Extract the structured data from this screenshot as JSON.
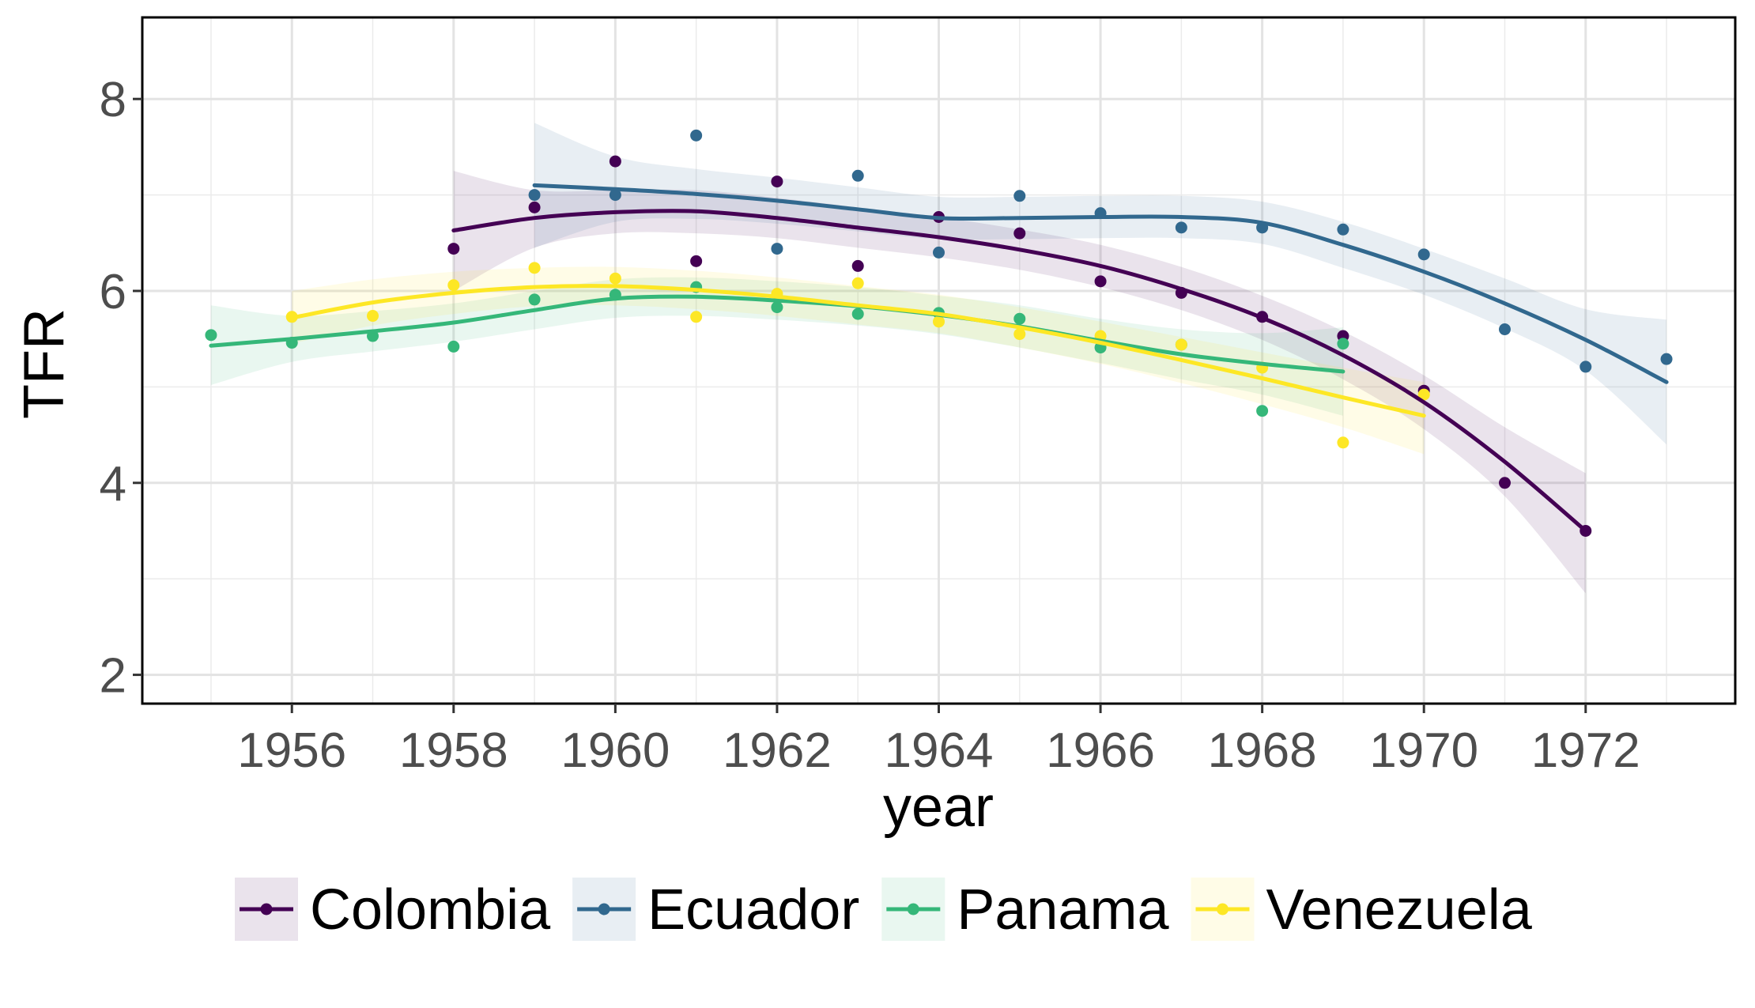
{
  "chart_data": {
    "type": "line",
    "xlabel": "year",
    "ylabel": "TFR",
    "xlim": [
      1954.15,
      1973.85
    ],
    "ylim": [
      1.7,
      8.85
    ],
    "x_ticks": [
      1956,
      1958,
      1960,
      1962,
      1964,
      1966,
      1968,
      1970,
      1972
    ],
    "y_ticks": [
      2,
      4,
      6,
      8
    ],
    "grid": true,
    "legend_position": "bottom",
    "series": [
      {
        "name": "Colombia",
        "color": "#440154",
        "points": [
          [
            1958,
            6.44
          ],
          [
            1959,
            6.87
          ],
          [
            1960,
            7.35
          ],
          [
            1961,
            6.31
          ],
          [
            1962,
            7.14
          ],
          [
            1963,
            6.26
          ],
          [
            1964,
            6.77
          ],
          [
            1965,
            6.6
          ],
          [
            1966,
            6.1
          ],
          [
            1967,
            5.98
          ],
          [
            1968,
            5.73
          ],
          [
            1969,
            5.53
          ],
          [
            1970,
            4.96
          ],
          [
            1971,
            4.0
          ],
          [
            1972,
            3.5
          ]
        ],
        "smooth": [
          [
            1958,
            6.63
          ],
          [
            1959,
            6.76
          ],
          [
            1960,
            6.82
          ],
          [
            1961,
            6.83
          ],
          [
            1962,
            6.76
          ],
          [
            1963,
            6.66
          ],
          [
            1964,
            6.56
          ],
          [
            1965,
            6.43
          ],
          [
            1966,
            6.26
          ],
          [
            1967,
            6.02
          ],
          [
            1968,
            5.72
          ],
          [
            1969,
            5.33
          ],
          [
            1970,
            4.84
          ],
          [
            1971,
            4.22
          ],
          [
            1972,
            3.5
          ]
        ],
        "band": [
          [
            1958,
            7.25,
            6.0
          ],
          [
            1959,
            7.05,
            6.45
          ],
          [
            1960,
            7.05,
            6.6
          ],
          [
            1961,
            7.05,
            6.6
          ],
          [
            1962,
            6.97,
            6.55
          ],
          [
            1963,
            6.87,
            6.45
          ],
          [
            1964,
            6.77,
            6.35
          ],
          [
            1965,
            6.64,
            6.22
          ],
          [
            1966,
            6.48,
            6.04
          ],
          [
            1967,
            6.25,
            5.8
          ],
          [
            1968,
            5.95,
            5.49
          ],
          [
            1969,
            5.58,
            5.08
          ],
          [
            1970,
            5.12,
            4.56
          ],
          [
            1971,
            4.58,
            3.86
          ],
          [
            1972,
            4.1,
            2.85
          ]
        ]
      },
      {
        "name": "Ecuador",
        "color": "#31688e",
        "points": [
          [
            1959,
            7.0
          ],
          [
            1960,
            7.0
          ],
          [
            1961,
            7.62
          ],
          [
            1962,
            6.44
          ],
          [
            1963,
            7.2
          ],
          [
            1964,
            6.4
          ],
          [
            1965,
            6.99
          ],
          [
            1966,
            6.81
          ],
          [
            1967,
            6.66
          ],
          [
            1968,
            6.66
          ],
          [
            1969,
            6.64
          ],
          [
            1970,
            6.38
          ],
          [
            1971,
            5.6
          ],
          [
            1972,
            5.21
          ],
          [
            1973,
            5.29
          ]
        ],
        "smooth": [
          [
            1959,
            7.1
          ],
          [
            1960,
            7.06
          ],
          [
            1961,
            7.01
          ],
          [
            1962,
            6.94
          ],
          [
            1963,
            6.85
          ],
          [
            1964,
            6.76
          ],
          [
            1965,
            6.76
          ],
          [
            1966,
            6.77
          ],
          [
            1967,
            6.77
          ],
          [
            1968,
            6.71
          ],
          [
            1969,
            6.48
          ],
          [
            1970,
            6.2
          ],
          [
            1971,
            5.87
          ],
          [
            1972,
            5.49
          ],
          [
            1973,
            5.05
          ]
        ],
        "band": [
          [
            1959,
            7.75,
            6.45
          ],
          [
            1960,
            7.4,
            6.72
          ],
          [
            1961,
            7.27,
            6.75
          ],
          [
            1962,
            7.18,
            6.7
          ],
          [
            1963,
            7.08,
            6.62
          ],
          [
            1964,
            6.98,
            6.54
          ],
          [
            1965,
            6.98,
            6.54
          ],
          [
            1966,
            6.99,
            6.55
          ],
          [
            1967,
            6.99,
            6.55
          ],
          [
            1968,
            6.93,
            6.49
          ],
          [
            1969,
            6.72,
            6.24
          ],
          [
            1970,
            6.44,
            5.96
          ],
          [
            1971,
            6.13,
            5.61
          ],
          [
            1972,
            5.81,
            5.17
          ],
          [
            1973,
            5.7,
            4.4
          ]
        ]
      },
      {
        "name": "Panama",
        "color": "#35b779",
        "points": [
          [
            1955,
            5.54
          ],
          [
            1956,
            5.46
          ],
          [
            1957,
            5.53
          ],
          [
            1958,
            5.42
          ],
          [
            1959,
            5.91
          ],
          [
            1960,
            5.96
          ],
          [
            1961,
            6.04
          ],
          [
            1962,
            5.83
          ],
          [
            1963,
            5.76
          ],
          [
            1964,
            5.77
          ],
          [
            1965,
            5.71
          ],
          [
            1966,
            5.41
          ],
          [
            1967,
            5.44
          ],
          [
            1968,
            4.75
          ],
          [
            1969,
            5.45
          ]
        ],
        "smooth": [
          [
            1955,
            5.43
          ],
          [
            1956,
            5.5
          ],
          [
            1957,
            5.58
          ],
          [
            1958,
            5.67
          ],
          [
            1959,
            5.8
          ],
          [
            1960,
            5.92
          ],
          [
            1961,
            5.94
          ],
          [
            1962,
            5.9
          ],
          [
            1963,
            5.84
          ],
          [
            1964,
            5.75
          ],
          [
            1965,
            5.63
          ],
          [
            1966,
            5.48
          ],
          [
            1967,
            5.34
          ],
          [
            1968,
            5.24
          ],
          [
            1969,
            5.16
          ]
        ],
        "band": [
          [
            1955,
            5.85,
            5.02
          ],
          [
            1956,
            5.74,
            5.26
          ],
          [
            1957,
            5.79,
            5.37
          ],
          [
            1958,
            5.87,
            5.47
          ],
          [
            1959,
            6.0,
            5.6
          ],
          [
            1960,
            6.12,
            5.72
          ],
          [
            1961,
            6.14,
            5.74
          ],
          [
            1962,
            6.1,
            5.7
          ],
          [
            1963,
            6.04,
            5.64
          ],
          [
            1964,
            5.95,
            5.55
          ],
          [
            1965,
            5.85,
            5.41
          ],
          [
            1966,
            5.71,
            5.25
          ],
          [
            1967,
            5.6,
            5.08
          ],
          [
            1968,
            5.56,
            4.92
          ],
          [
            1969,
            5.62,
            4.7
          ]
        ]
      },
      {
        "name": "Venezuela",
        "color": "#fde725",
        "points": [
          [
            1956,
            5.73
          ],
          [
            1957,
            5.74
          ],
          [
            1958,
            6.06
          ],
          [
            1959,
            6.24
          ],
          [
            1960,
            6.13
          ],
          [
            1961,
            5.73
          ],
          [
            1962,
            5.97
          ],
          [
            1963,
            6.08
          ],
          [
            1964,
            5.68
          ],
          [
            1965,
            5.55
          ],
          [
            1966,
            5.53
          ],
          [
            1967,
            5.44
          ],
          [
            1968,
            5.2
          ],
          [
            1969,
            4.42
          ],
          [
            1970,
            4.92
          ]
        ],
        "smooth": [
          [
            1956,
            5.72
          ],
          [
            1957,
            5.88
          ],
          [
            1958,
            5.98
          ],
          [
            1959,
            6.04
          ],
          [
            1960,
            6.05
          ],
          [
            1961,
            6.01
          ],
          [
            1962,
            5.94
          ],
          [
            1963,
            5.85
          ],
          [
            1964,
            5.76
          ],
          [
            1965,
            5.62
          ],
          [
            1966,
            5.46
          ],
          [
            1967,
            5.28
          ],
          [
            1968,
            5.09
          ],
          [
            1969,
            4.89
          ],
          [
            1970,
            4.7
          ]
        ],
        "band": [
          [
            1956,
            6.0,
            5.45
          ],
          [
            1957,
            6.12,
            5.64
          ],
          [
            1958,
            6.2,
            5.76
          ],
          [
            1959,
            6.24,
            5.84
          ],
          [
            1960,
            6.25,
            5.85
          ],
          [
            1961,
            6.21,
            5.81
          ],
          [
            1962,
            6.14,
            5.74
          ],
          [
            1963,
            6.05,
            5.65
          ],
          [
            1964,
            5.96,
            5.56
          ],
          [
            1965,
            5.83,
            5.41
          ],
          [
            1966,
            5.68,
            5.24
          ],
          [
            1967,
            5.52,
            5.04
          ],
          [
            1968,
            5.36,
            4.82
          ],
          [
            1969,
            5.2,
            4.58
          ],
          [
            1970,
            5.05,
            4.3
          ]
        ]
      }
    ]
  }
}
